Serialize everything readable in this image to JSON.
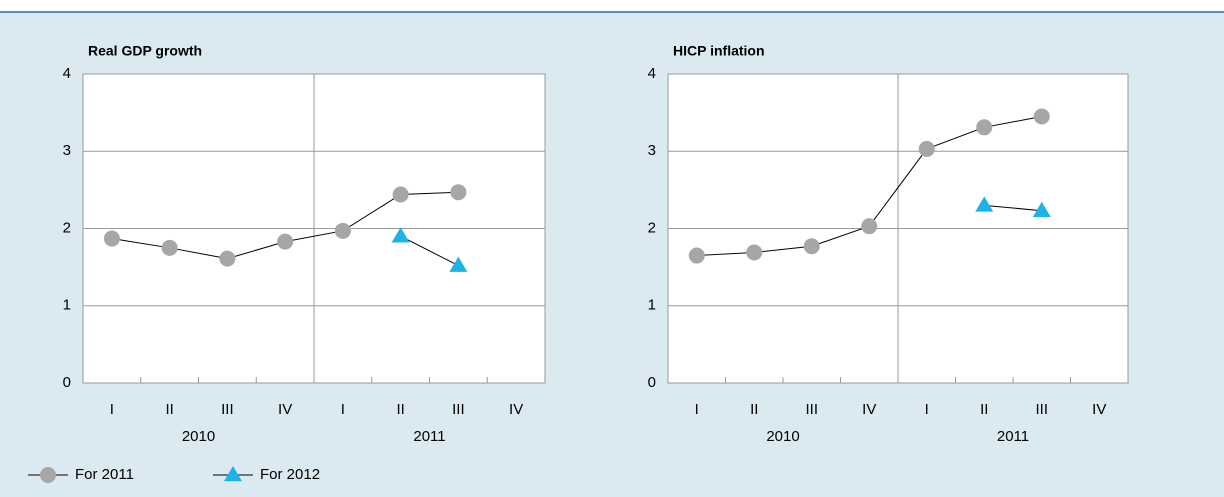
{
  "chart_data": [
    {
      "type": "line",
      "title": "Real GDP growth",
      "categories": [
        "I",
        "II",
        "III",
        "IV",
        "I",
        "II",
        "III",
        "IV"
      ],
      "group_labels": [
        "2010",
        "2011"
      ],
      "series": [
        {
          "name": "For 2011",
          "color": "#a6a6a6",
          "marker": "circle",
          "values": [
            1.87,
            1.75,
            1.61,
            1.83,
            1.97,
            2.44,
            2.47,
            null
          ]
        },
        {
          "name": "For 2012",
          "color": "#1eb3e6",
          "marker": "triangle",
          "values": [
            null,
            null,
            null,
            null,
            null,
            1.9,
            1.52,
            null
          ]
        }
      ],
      "ylim": [
        0,
        4
      ],
      "yticks": [
        0,
        1,
        2,
        3,
        4
      ],
      "grid": true
    },
    {
      "type": "line",
      "title": "HICP inflation",
      "categories": [
        "I",
        "II",
        "III",
        "IV",
        "I",
        "II",
        "III",
        "IV"
      ],
      "group_labels": [
        "2010",
        "2011"
      ],
      "series": [
        {
          "color": "#a6a6a6",
          "marker": "circle",
          "values": [
            1.65,
            1.69,
            1.77,
            2.03,
            3.03,
            3.31,
            3.45,
            null
          ]
        },
        {
          "color": "#1eb3e6",
          "marker": "triangle",
          "values": [
            null,
            null,
            null,
            null,
            null,
            2.3,
            2.23,
            null
          ]
        }
      ],
      "ylim": [
        0,
        4
      ],
      "yticks": [
        0,
        1,
        2,
        3,
        4
      ],
      "grid": true
    }
  ]
}
